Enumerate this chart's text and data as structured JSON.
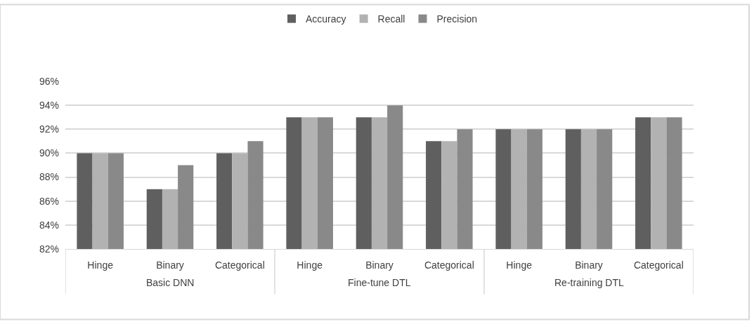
{
  "chart_data": {
    "type": "bar",
    "categories": [
      "Hinge",
      "Binary",
      "Categorical",
      "Hinge",
      "Binary",
      "Categorical",
      "Hinge",
      "Binary",
      "Categorical"
    ],
    "series": [
      {
        "name": "Accuracy",
        "color": "#5f5f5f",
        "values": [
          90,
          87,
          90,
          93,
          93,
          91,
          92,
          92,
          93
        ]
      },
      {
        "name": "Recall",
        "color": "#b2b2b2",
        "values": [
          90,
          87,
          90,
          93,
          93,
          91,
          92,
          92,
          93
        ]
      },
      {
        "name": "Precision",
        "color": "#898989",
        "values": [
          90,
          89,
          91,
          93,
          94,
          92,
          92,
          92,
          93
        ]
      }
    ],
    "ylim": [
      82,
      96
    ],
    "yticks": [
      {
        "value": 82,
        "label": "82%"
      },
      {
        "value": 84,
        "label": "84%"
      },
      {
        "value": 86,
        "label": "86%"
      },
      {
        "value": 88,
        "label": "88%"
      },
      {
        "value": 90,
        "label": "90%"
      },
      {
        "value": 92,
        "label": "92%"
      },
      {
        "value": 94,
        "label": "94%"
      },
      {
        "value": 96,
        "label": "96%"
      }
    ],
    "grid": "y",
    "legend": "top",
    "annotations": [
      "Basic DNN",
      "Fine-tune DTL",
      "Re-training DTL"
    ]
  }
}
